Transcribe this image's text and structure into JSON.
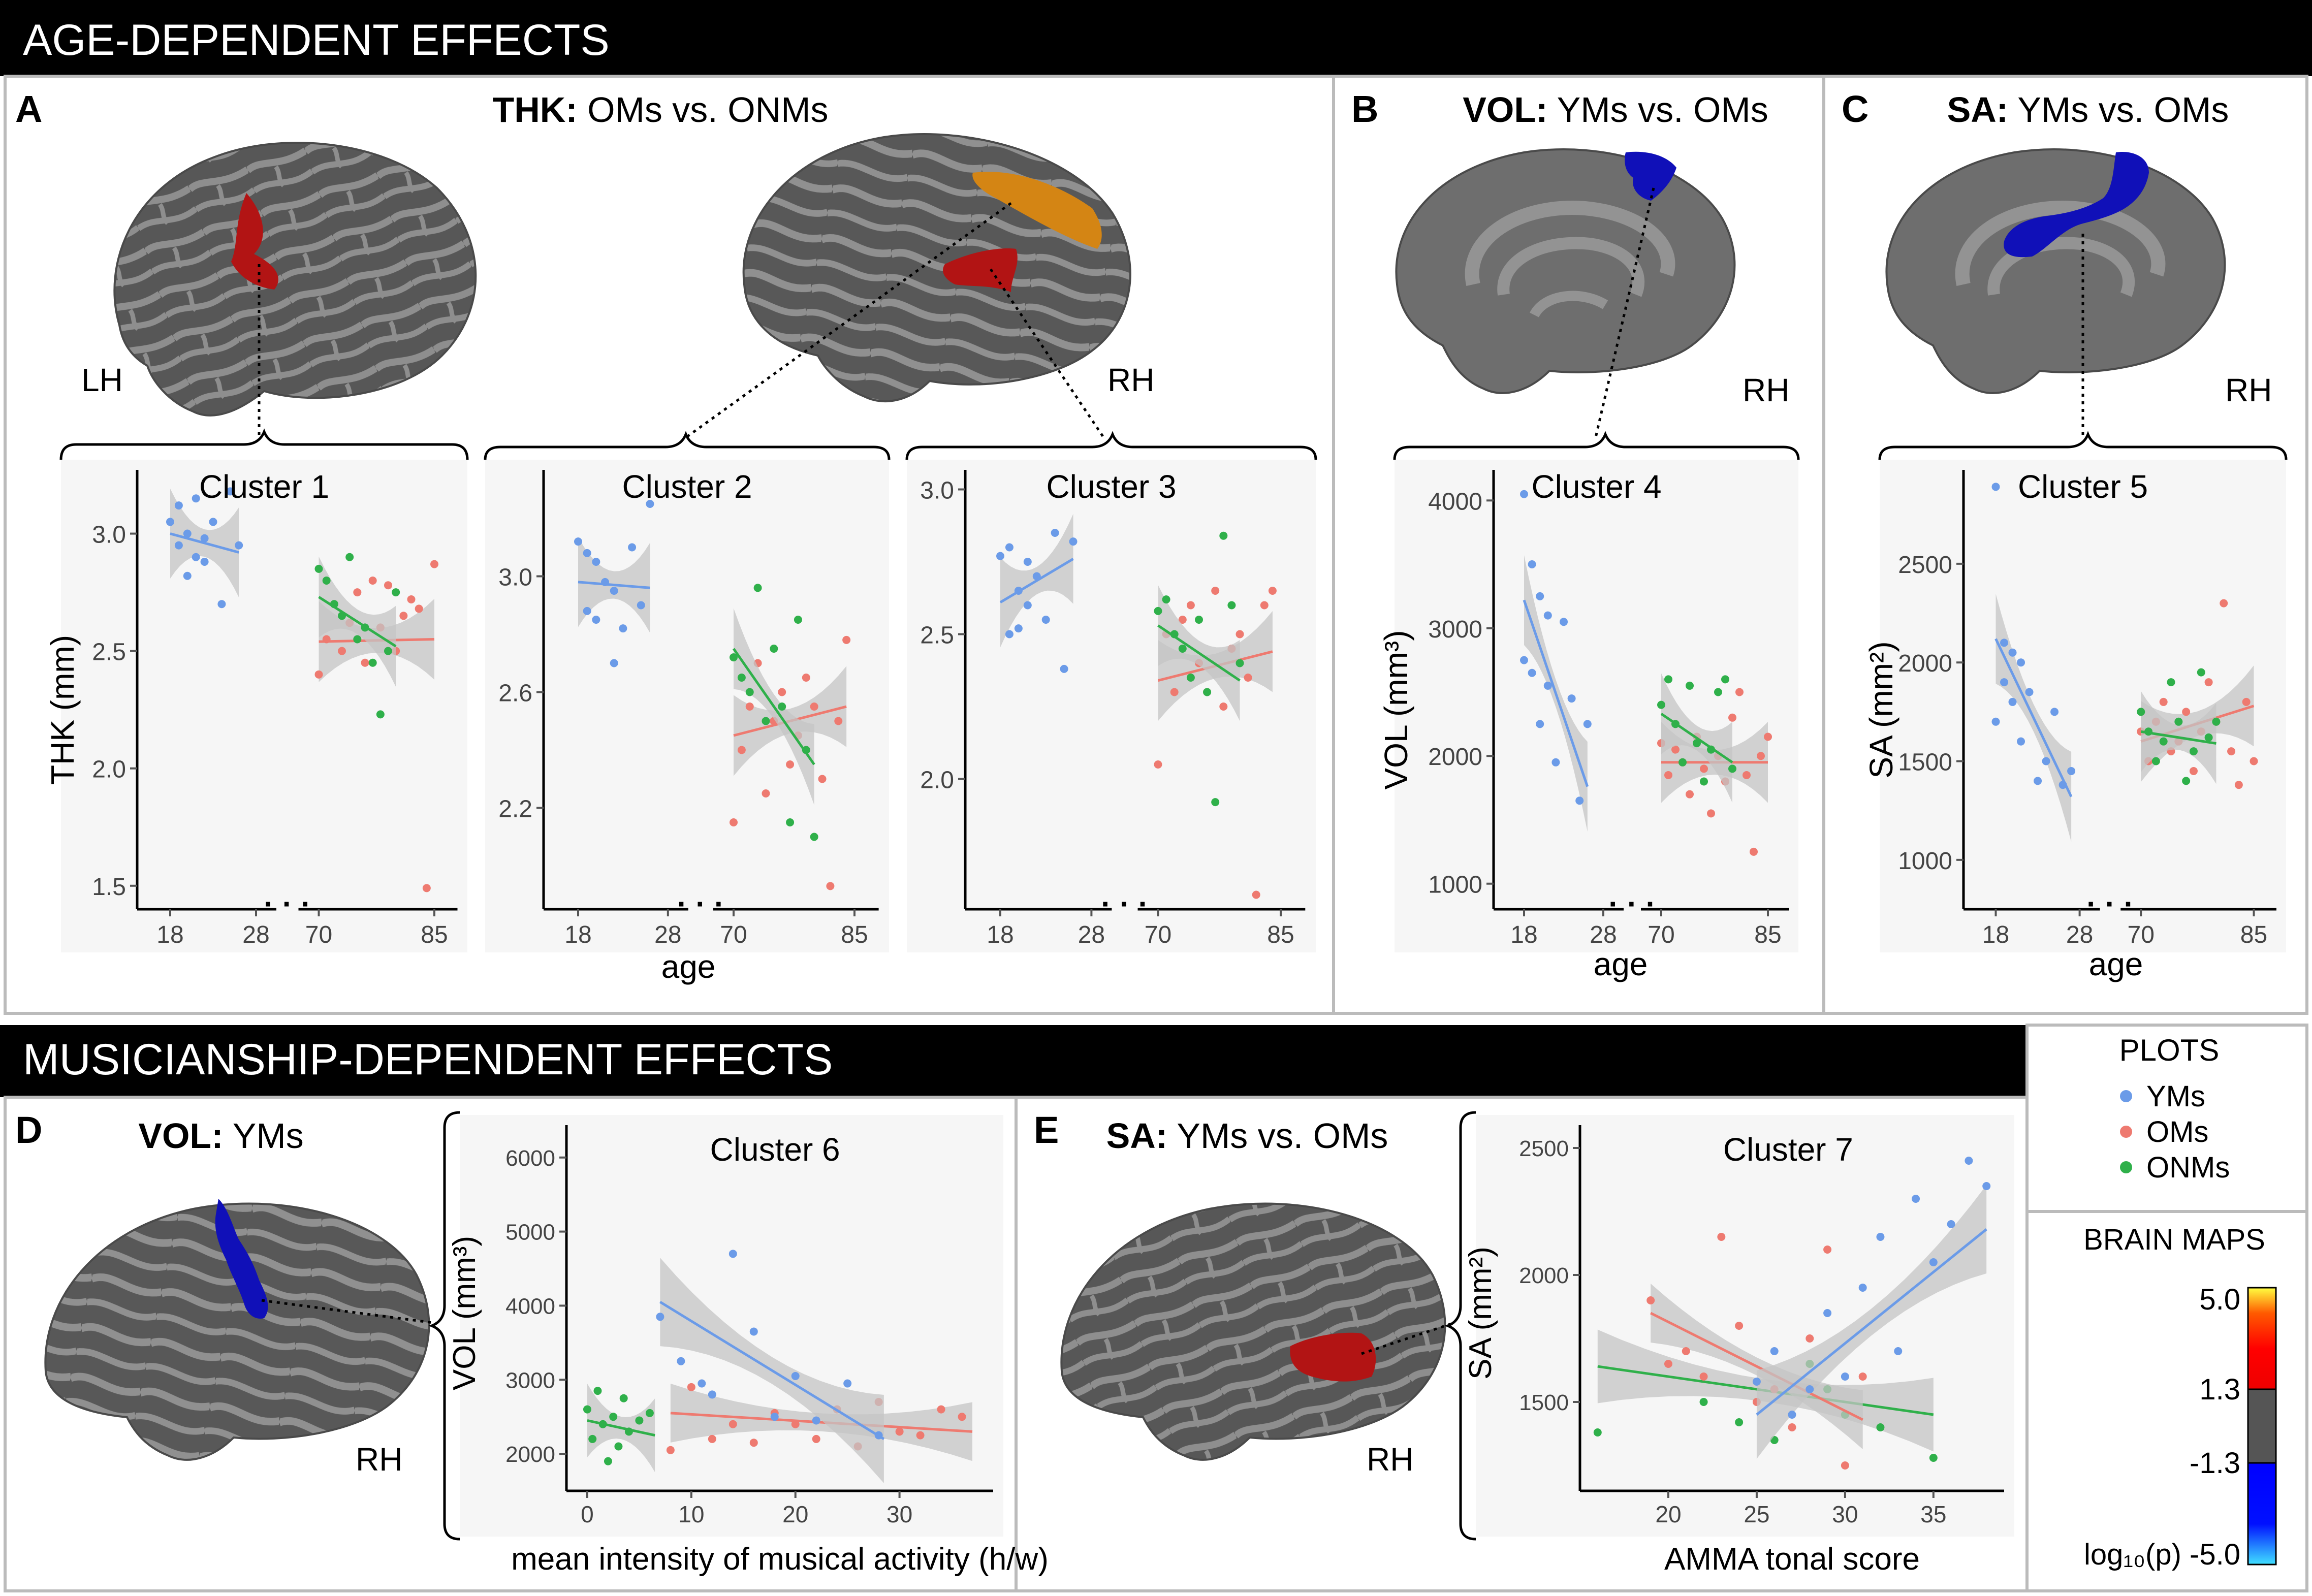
{
  "colors": {
    "yms": "#6b9be8",
    "oms": "#ee7a70",
    "onms": "#2fb04a",
    "ci": "#c4c4c4",
    "panel_bg": "#f6f6f6",
    "brain_dark": "#555555",
    "brain_light": "#8f8f8f",
    "cluster_red": "#b21414",
    "cluster_orange": "#d48514",
    "cluster_blue": "#1010b8"
  },
  "headers": {
    "age": "AGE-DEPENDENT EFFECTS",
    "musicianship": "MUSICIANSHIP-DEPENDENT EFFECTS"
  },
  "panels": {
    "A": {
      "letter": "A",
      "metric": "THK:",
      "contrast": " OMs vs. ONMs",
      "lh": "LH",
      "rh": "RH"
    },
    "B": {
      "letter": "B",
      "metric": "VOL:",
      "contrast": " YMs vs. OMs",
      "rh": "RH"
    },
    "C": {
      "letter": "C",
      "metric": "SA:",
      "contrast": " YMs vs. OMs",
      "rh": "RH"
    },
    "D": {
      "letter": "D",
      "metric": "VOL:",
      "contrast": " YMs",
      "rh": "RH"
    },
    "E": {
      "letter": "E",
      "metric": "SA:",
      "contrast": " YMs vs. OMs",
      "rh": "RH"
    }
  },
  "legend": {
    "plots_title": "PLOTS",
    "items": [
      {
        "label": "YMs",
        "icon": "blue-dot-icon"
      },
      {
        "label": "OMs",
        "icon": "red-dot-icon"
      },
      {
        "label": "ONMs",
        "icon": "green-dot-icon"
      }
    ],
    "maps_title": "BRAIN MAPS",
    "scale": [
      "5.0",
      "1.3",
      "-1.3",
      "-5.0"
    ],
    "scale_label": "log₁₀(p)"
  },
  "chart_data": [
    {
      "id": "cluster1",
      "type": "scatter",
      "title": "Cluster 1",
      "xlabel": "age",
      "ylabel": "THK (mm)",
      "yticks": [
        "1.5",
        "2.0",
        "2.5",
        "3.0"
      ],
      "ylim": [
        1.4,
        3.25
      ],
      "xticks": [
        "18",
        "28",
        "70",
        "85"
      ],
      "young": {
        "x": [
          18,
          19,
          19,
          20,
          20,
          21,
          21,
          22,
          22,
          23,
          24,
          25,
          26
        ],
        "y": [
          3.05,
          3.12,
          2.95,
          3.0,
          2.82,
          3.15,
          2.9,
          2.98,
          2.88,
          3.05,
          2.7,
          3.18,
          2.95
        ],
        "fit": [
          3.0,
          2.92
        ]
      },
      "oms": {
        "x": [
          70,
          71,
          72,
          73,
          74,
          75,
          76,
          77,
          78,
          79,
          80,
          81,
          82,
          83,
          84,
          85
        ],
        "y": [
          2.4,
          2.55,
          2.7,
          2.5,
          2.62,
          2.75,
          2.45,
          2.8,
          2.6,
          2.78,
          2.5,
          2.65,
          2.72,
          2.68,
          1.49,
          2.87
        ],
        "fit": [
          2.54,
          2.55
        ]
      },
      "onms": {
        "x": [
          70,
          71,
          72,
          73,
          74,
          75,
          76,
          77,
          78,
          79,
          80
        ],
        "y": [
          2.85,
          2.8,
          2.7,
          2.65,
          2.9,
          2.55,
          2.6,
          2.45,
          2.23,
          2.5,
          2.75
        ],
        "fit": [
          2.73,
          2.52
        ]
      }
    },
    {
      "id": "cluster2",
      "type": "scatter",
      "title": "Cluster 2",
      "xlabel": "age",
      "ylabel": "",
      "yticks": [
        "2.2",
        "2.6",
        "3.0"
      ],
      "ylim": [
        1.85,
        3.35
      ],
      "xticks": [
        "18",
        "28",
        "70",
        "85"
      ],
      "young": {
        "x": [
          18,
          19,
          19,
          20,
          20,
          21,
          22,
          22,
          23,
          24,
          25,
          26
        ],
        "y": [
          3.12,
          3.08,
          2.88,
          3.05,
          2.85,
          2.98,
          2.7,
          2.95,
          2.82,
          3.1,
          2.9,
          3.25
        ],
        "fit": [
          2.98,
          2.96
        ]
      },
      "oms": {
        "x": [
          70,
          71,
          72,
          73,
          74,
          75,
          76,
          77,
          78,
          79,
          80,
          81,
          82,
          83,
          84
        ],
        "y": [
          2.15,
          2.4,
          2.55,
          2.7,
          2.25,
          2.5,
          2.6,
          2.35,
          2.45,
          2.65,
          2.55,
          2.3,
          1.93,
          2.5,
          2.78
        ],
        "fit": [
          2.45,
          2.55
        ]
      },
      "onms": {
        "x": [
          70,
          71,
          72,
          73,
          74,
          75,
          76,
          77,
          78,
          79,
          80
        ],
        "y": [
          2.72,
          2.65,
          2.6,
          2.96,
          2.5,
          2.75,
          2.55,
          2.15,
          2.85,
          2.4,
          2.1
        ],
        "fit": [
          2.75,
          2.35
        ]
      }
    },
    {
      "id": "cluster3",
      "type": "scatter",
      "title": "Cluster 3",
      "xlabel": "age",
      "ylabel": "",
      "yticks": [
        "2.0",
        "2.5",
        "3.0"
      ],
      "ylim": [
        1.55,
        3.05
      ],
      "xticks": [
        "18",
        "28",
        "70",
        "85"
      ],
      "young": {
        "x": [
          18,
          19,
          19,
          20,
          20,
          21,
          21,
          22,
          23,
          24,
          25,
          26
        ],
        "y": [
          2.77,
          2.8,
          2.5,
          2.65,
          2.52,
          2.75,
          2.6,
          2.7,
          2.55,
          2.85,
          2.38,
          2.82
        ],
        "fit": [
          2.61,
          2.76
        ]
      },
      "oms": {
        "x": [
          70,
          71,
          72,
          73,
          74,
          75,
          76,
          77,
          78,
          79,
          80,
          81,
          82,
          83,
          84
        ],
        "y": [
          2.05,
          2.5,
          2.3,
          2.55,
          2.6,
          2.4,
          2.3,
          2.65,
          2.25,
          2.45,
          2.5,
          2.35,
          1.6,
          2.6,
          2.65
        ],
        "fit": [
          2.34,
          2.44
        ]
      },
      "onms": {
        "x": [
          70,
          71,
          72,
          73,
          74,
          75,
          76,
          77,
          78,
          79,
          80
        ],
        "y": [
          2.58,
          2.62,
          2.5,
          2.45,
          2.35,
          2.55,
          2.3,
          1.92,
          2.84,
          2.6,
          2.4
        ],
        "fit": [
          2.53,
          2.34
        ]
      }
    },
    {
      "id": "cluster4",
      "type": "scatter",
      "title": "Cluster 4",
      "xlabel": "age",
      "ylabel": "VOL (mm³)",
      "yticks": [
        "1000",
        "2000",
        "3000",
        "4000"
      ],
      "ylim": [
        800,
        4200
      ],
      "xticks": [
        "18",
        "28",
        "70",
        "85"
      ],
      "young": {
        "x": [
          18,
          18,
          19,
          19,
          20,
          20,
          21,
          21,
          22,
          23,
          24,
          25,
          26
        ],
        "y": [
          4050,
          2750,
          3500,
          2650,
          3250,
          2250,
          3100,
          2550,
          1950,
          3050,
          2450,
          1650,
          2250
        ],
        "fit": [
          3220,
          1760
        ]
      },
      "oms": {
        "x": [
          70,
          71,
          72,
          73,
          74,
          75,
          76,
          77,
          78,
          79,
          80,
          81,
          82,
          83,
          84,
          85
        ],
        "y": [
          2100,
          1850,
          2050,
          1950,
          1700,
          2150,
          1900,
          1550,
          2000,
          1800,
          2300,
          2500,
          1850,
          1250,
          2000,
          2150
        ],
        "fit": [
          1950,
          1950
        ]
      },
      "onms": {
        "x": [
          70,
          71,
          72,
          73,
          74,
          75,
          76,
          77,
          78,
          79,
          80
        ],
        "y": [
          2400,
          2600,
          2250,
          1950,
          2550,
          2100,
          1800,
          2050,
          2500,
          2600,
          1900
        ],
        "fit": [
          2330,
          1950
        ]
      }
    },
    {
      "id": "cluster5",
      "type": "scatter",
      "title": "Cluster 5",
      "xlabel": "age",
      "ylabel": "SA (mm²)",
      "yticks": [
        "1000",
        "1500",
        "2000",
        "2500"
      ],
      "ylim": [
        750,
        2950
      ],
      "xticks": [
        "18",
        "28",
        "70",
        "85"
      ],
      "young": {
        "x": [
          18,
          18,
          19,
          19,
          20,
          20,
          21,
          21,
          22,
          23,
          24,
          25,
          26,
          27
        ],
        "y": [
          2890,
          1700,
          2100,
          1900,
          2050,
          1800,
          2000,
          1600,
          1850,
          1400,
          1500,
          1750,
          1380,
          1450
        ],
        "fit": [
          2120,
          1320
        ]
      },
      "oms": {
        "x": [
          70,
          71,
          72,
          73,
          74,
          75,
          76,
          77,
          78,
          79,
          80,
          81,
          82,
          83,
          84,
          85
        ],
        "y": [
          1650,
          1500,
          1700,
          1800,
          1550,
          1600,
          1750,
          1450,
          1650,
          1900,
          1700,
          2300,
          1550,
          1380,
          1800,
          1500
        ],
        "fit": [
          1600,
          1780
        ]
      },
      "onms": {
        "x": [
          70,
          71,
          72,
          73,
          74,
          75,
          76,
          77,
          78,
          79,
          80
        ],
        "y": [
          1750,
          1650,
          1500,
          1600,
          1900,
          1700,
          1400,
          1550,
          1950,
          1620,
          1700
        ],
        "fit": [
          1650,
          1590
        ]
      }
    },
    {
      "id": "cluster6",
      "type": "scatter",
      "title": "Cluster 6",
      "xlabel": "mean intensity of musical activity (h/w)",
      "ylabel": "VOL (mm³)",
      "yticks": [
        "2000",
        "3000",
        "4000",
        "5000",
        "6000"
      ],
      "xticks": [
        "0",
        "10",
        "20",
        "30"
      ],
      "xlim": [
        -2,
        39
      ],
      "ylim": [
        1500,
        6300
      ],
      "yms": {
        "x": [
          7,
          9,
          11,
          12,
          14,
          16,
          18,
          20,
          22,
          25,
          28
        ],
        "y": [
          3850,
          3250,
          2950,
          2800,
          4700,
          3650,
          2500,
          3050,
          2450,
          2950,
          2250
        ],
        "fit_x": [
          7,
          28.5
        ],
        "fit": [
          4050,
          2200
        ]
      },
      "oms": {
        "x": [
          8,
          10,
          12,
          14,
          16,
          18,
          20,
          22,
          24,
          26,
          28,
          30,
          32,
          34,
          36
        ],
        "y": [
          2050,
          2900,
          2200,
          2400,
          2150,
          2550,
          2400,
          2200,
          2600,
          2100,
          2700,
          2300,
          2250,
          2600,
          2500
        ],
        "fit_x": [
          8,
          37
        ],
        "fit": [
          2550,
          2300
        ]
      },
      "onms": {
        "x": [
          0,
          0.5,
          1,
          1.5,
          2,
          2.5,
          3,
          3.5,
          4,
          5,
          6
        ],
        "y": [
          2600,
          2200,
          2850,
          2400,
          1900,
          2500,
          2100,
          2750,
          2300,
          2450,
          2550
        ],
        "fit_x": [
          0,
          6.5
        ],
        "fit": [
          2450,
          2250
        ]
      }
    },
    {
      "id": "cluster7",
      "type": "scatter",
      "title": "Cluster 7",
      "xlabel": "AMMA tonal score",
      "ylabel": "SA (mm²)",
      "yticks": [
        "1500",
        "2000",
        "2500"
      ],
      "xticks": [
        "20",
        "25",
        "30",
        "35"
      ],
      "xlim": [
        15,
        39
      ],
      "ylim": [
        1150,
        2550
      ],
      "yms": {
        "x": [
          25,
          26,
          27,
          28,
          29,
          30,
          31,
          32,
          33,
          34,
          35,
          36,
          37,
          38
        ],
        "y": [
          1580,
          1700,
          1450,
          1550,
          1850,
          1600,
          1950,
          2150,
          1700,
          2300,
          2050,
          2200,
          2450,
          2350
        ],
        "fit_x": [
          25,
          38
        ],
        "fit": [
          1450,
          2180
        ]
      },
      "oms": {
        "x": [
          19,
          20,
          21,
          22,
          23,
          24,
          25,
          26,
          27,
          28,
          29,
          30,
          31
        ],
        "y": [
          1900,
          1650,
          1700,
          1600,
          2150,
          1800,
          1500,
          1550,
          1400,
          1750,
          2100,
          1250,
          1600
        ],
        "fit_x": [
          19,
          31
        ],
        "fit": [
          1850,
          1430
        ]
      },
      "onms": {
        "x": [
          16,
          22,
          24,
          26,
          28,
          29,
          30,
          32,
          35
        ],
        "y": [
          1380,
          1500,
          1420,
          1350,
          1650,
          1550,
          1450,
          1400,
          1280
        ],
        "fit_x": [
          16,
          35
        ],
        "fit": [
          1640,
          1450
        ]
      }
    }
  ]
}
